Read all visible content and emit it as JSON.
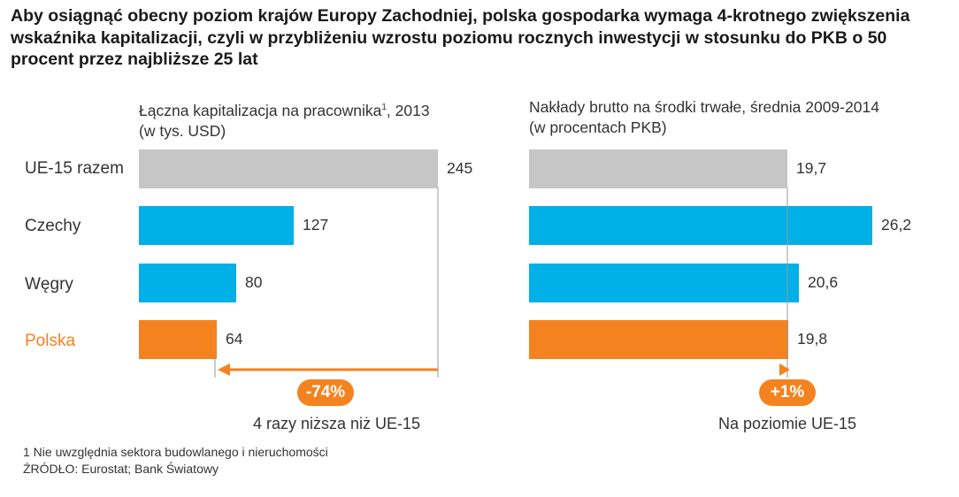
{
  "headline": "Aby osiągnąć obecny poziom krajów Europy Zachodniej, polska gospodarka wymaga 4-krotnego zwiększenia wskaźnika kapitalizacji, czyli w przybliżeniu wzrostu poziomu rocznych inwestycji w stosunku do PKB o 50 procent przez najbliższe 25 lat",
  "colors": {
    "grey": "#c6c6c6",
    "blue": "#00b0e6",
    "orange": "#f4821f",
    "arrow": "#f4821f"
  },
  "chart_data": [
    {
      "type": "bar",
      "orientation": "horizontal",
      "title_line1": "Łączna kapitalizacja na pracownika",
      "title_sup": "1",
      "title_suffix": ", 2013",
      "title_line2": "(w tys. USD)",
      "categories": [
        "UE-15 razem",
        "Czechy",
        "Węgry",
        "Polska"
      ],
      "values": [
        245,
        127,
        80,
        64
      ],
      "value_labels": [
        "245",
        "127",
        "80",
        "64"
      ],
      "bar_colors": [
        "#c6c6c6",
        "#00b0e6",
        "#00b0e6",
        "#f4821f"
      ],
      "badge": "-74%",
      "caption": "4 razy niższa niż UE-15"
    },
    {
      "type": "bar",
      "orientation": "horizontal",
      "title_line1": "Nakłady brutto na środki trwałe, średnia 2009-2014",
      "title_line2": "(w procentach PKB)",
      "categories": [
        "UE-15 razem",
        "Czechy",
        "Węgry",
        "Polska"
      ],
      "values": [
        19.7,
        26.2,
        20.6,
        19.8
      ],
      "value_labels": [
        "19,7",
        "26,2",
        "20,6",
        "19,8"
      ],
      "bar_colors": [
        "#c6c6c6",
        "#00b0e6",
        "#00b0e6",
        "#f4821f"
      ],
      "badge": "+1%",
      "caption": "Na poziomie UE-15"
    }
  ],
  "footnote": "1 Nie uwzględnia sektora budowlanego i nieruchomości",
  "source": "ŹRÓDŁO: Eurostat; Bank Światowy"
}
